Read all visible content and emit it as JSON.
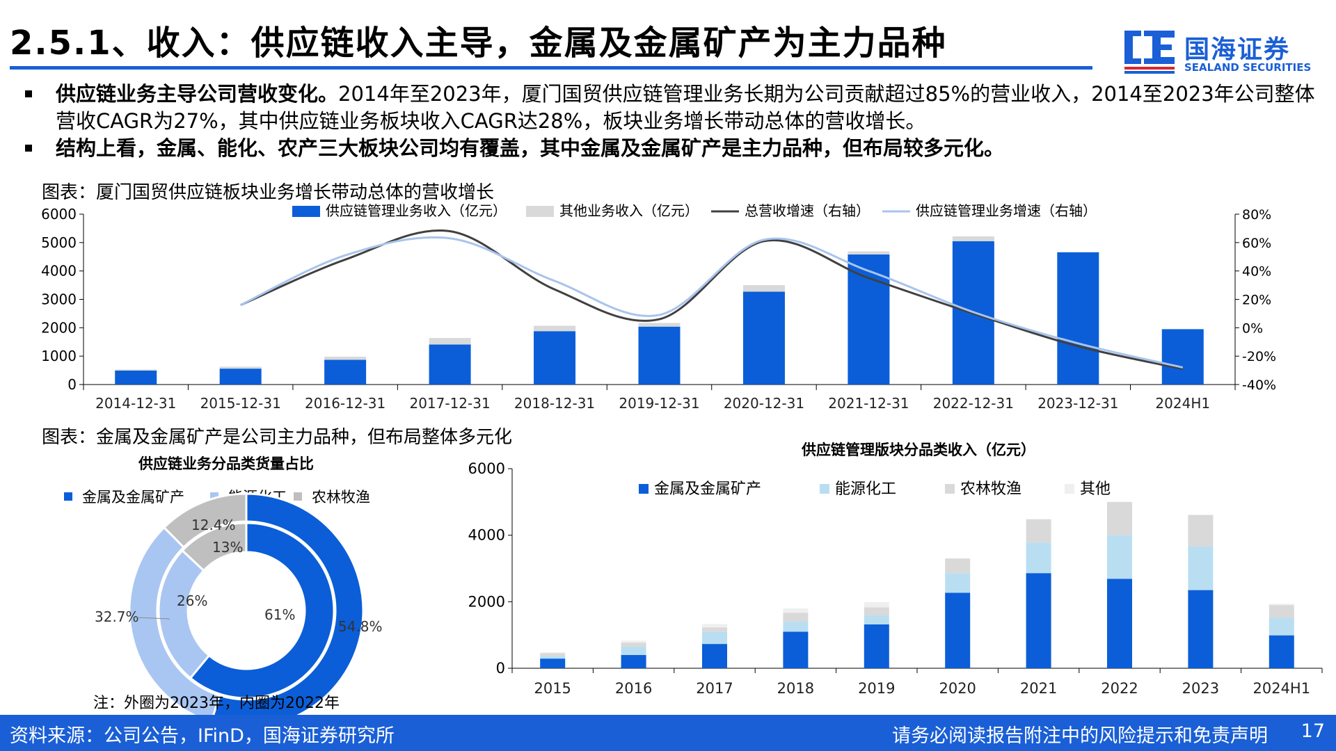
{
  "header": {
    "title": "2.5.1、收入：供应链收入主导，金属及金属矿产为主力品种",
    "logo_cn": "国海证券",
    "logo_en": "SEALAND SECURITIES"
  },
  "bullets": [
    {
      "bold": "供应链业务主导公司营收变化。",
      "text": "2014年至2023年，厦门国贸供应链管理业务长期为公司贡献超过85%的营业收入，2014至2023年公司整体营收CAGR为27%，其中供应链业务板块收入CAGR达28%，板块业务增长带动总体的营收增长。"
    },
    {
      "bold": "结构上看，金属、能化、农产三大板块公司均有覆盖，其中金属及金属矿产是主力品种，但布局较多元化。",
      "text": ""
    }
  ],
  "figure1_label": "图表：厦门国贸供应链板块业务增长带动总体的营收增长",
  "figure2_label": "图表：金属及金属矿产是公司主力品种，但布局整体多元化",
  "note": "注：外圈为2023年，内圈为2022年",
  "footer": {
    "source": "资料来源：公司公告，IFinD，国海证券研究所",
    "disclaimer": "请务必阅读报告附注中的风险提示和免责声明",
    "page": "17"
  },
  "colors": {
    "brand_blue": "#1a5fd6",
    "bar_blue": "#0b5ed7",
    "light_gray": "#d9d9d9",
    "dark_line": "#404040",
    "light_line": "#a9c4ec",
    "light_blue": "#b9def2",
    "donut_light": "#a9c6f2",
    "donut_gray": "#bfbfbf"
  },
  "chart_data": [
    {
      "type": "bar",
      "categories": [
        "2014-12-31",
        "2015-12-31",
        "2016-12-31",
        "2017-12-31",
        "2018-12-31",
        "2019-12-31",
        "2020-12-31",
        "2021-12-31",
        "2022-12-31",
        "2023-12-31",
        "2024H1"
      ],
      "series": [
        {
          "name": "供应链管理业务收入（亿元）",
          "kind": "bar",
          "axis": "left",
          "values": [
            490,
            560,
            870,
            1410,
            1880,
            2040,
            3270,
            4580,
            5050,
            4660,
            1950
          ]
        },
        {
          "name": "其他业务收入（亿元）",
          "kind": "bar",
          "axis": "left",
          "values": [
            40,
            70,
            110,
            230,
            190,
            130,
            230,
            110,
            170,
            10,
            0
          ]
        },
        {
          "name": "总营收增速（右轴）",
          "kind": "line",
          "axis": "right",
          "values": [
            null,
            16,
            48,
            68,
            27,
            6,
            61,
            35,
            10,
            -13,
            -29
          ]
        },
        {
          "name": "供应链管理业务增速（右轴）",
          "kind": "line",
          "axis": "right",
          "values": [
            null,
            16,
            51,
            63,
            33,
            9,
            62,
            40,
            11,
            -11,
            -28
          ]
        }
      ],
      "ylim": [
        0,
        6000
      ],
      "yticks": [
        0,
        1000,
        2000,
        3000,
        4000,
        5000,
        6000
      ],
      "y2lim": [
        -40,
        80
      ],
      "y2ticks": [
        "-40%",
        "-20%",
        "0%",
        "20%",
        "40%",
        "60%",
        "80%"
      ],
      "legend_position": "top"
    },
    {
      "type": "pie",
      "title": "供应链业务分品类货量占比",
      "legend": [
        "金属及金属矿产",
        "能源化工",
        "农林牧渔"
      ],
      "rings": [
        {
          "ring": "outer",
          "values": [
            54.8,
            32.7,
            12.4
          ],
          "labels": [
            "54.8%",
            "32.7%",
            "12.4%"
          ]
        },
        {
          "ring": "inner",
          "values": [
            61,
            26,
            13
          ],
          "labels": [
            "61%",
            "26%",
            "13%"
          ]
        }
      ]
    },
    {
      "type": "bar",
      "title": "供应链管理版块分品类收入（亿元）",
      "stacked": true,
      "categories": [
        "2015",
        "2016",
        "2017",
        "2018",
        "2019",
        "2020",
        "2021",
        "2022",
        "2023",
        "2024H1"
      ],
      "series": [
        {
          "name": "金属及金属矿产",
          "values": [
            290,
            400,
            730,
            1100,
            1320,
            2270,
            2860,
            2690,
            2350,
            990
          ]
        },
        {
          "name": "能源化工",
          "values": [
            80,
            250,
            360,
            300,
            270,
            590,
            920,
            1310,
            1310,
            530
          ]
        },
        {
          "name": "农林牧渔",
          "values": [
            80,
            120,
            140,
            270,
            240,
            440,
            700,
            1000,
            950,
            380
          ]
        },
        {
          "name": "其他",
          "values": [
            30,
            60,
            100,
            130,
            160,
            0,
            0,
            0,
            0,
            40
          ]
        }
      ],
      "ylim": [
        0,
        6000
      ],
      "yticks": [
        0,
        2000,
        4000,
        6000
      ],
      "legend_position": "top"
    }
  ]
}
